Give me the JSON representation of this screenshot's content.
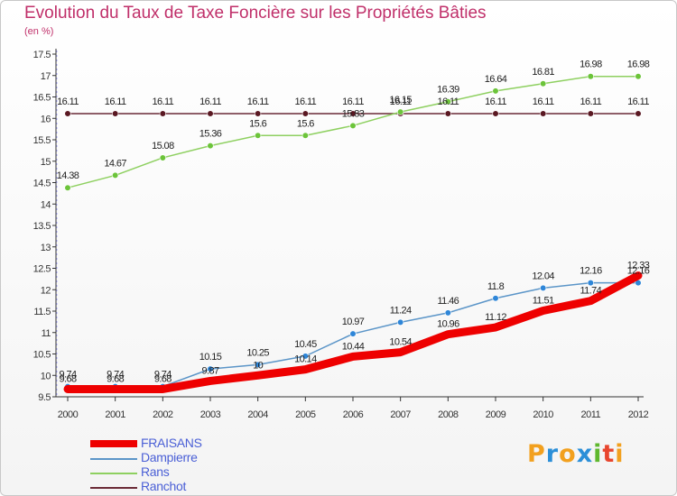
{
  "header": {
    "title": "Evolution du Taux de Taxe Foncière sur les Propriétés Bâties",
    "unit": "(en %)"
  },
  "brand": {
    "letters": [
      "P",
      "r",
      "o",
      "x",
      "i",
      "t",
      "i"
    ],
    "colors": [
      "#f2a01e",
      "#2b8fd8",
      "#f2a01e",
      "#2b8fd8",
      "#5fb82e",
      "#e8462e",
      "#f2a01e"
    ]
  },
  "chart_data": {
    "type": "line",
    "title": "Evolution du Taux de Taxe Foncière sur les Propriétés Bâties",
    "ylabel": "(en %)",
    "xlabel": "",
    "categories": [
      "2000",
      "2001",
      "2002",
      "2003",
      "2004",
      "2005",
      "2006",
      "2007",
      "2008",
      "2009",
      "2010",
      "2011",
      "2012"
    ],
    "ylim": [
      9.5,
      17.5
    ],
    "yticks": [
      "9.5",
      "10",
      "10.5",
      "11",
      "11.5",
      "12",
      "12.5",
      "13",
      "13.5",
      "14",
      "14.5",
      "15",
      "15.5",
      "16",
      "16.5",
      "17",
      "17.5"
    ],
    "grid": false,
    "legend_position": "bottom-left",
    "series": [
      {
        "name": "FRAISANS",
        "color": "#ee0000",
        "marker_color": "#ee0000",
        "values": [
          9.68,
          9.68,
          9.68,
          9.87,
          10.0,
          10.14,
          10.44,
          10.54,
          10.96,
          11.12,
          11.51,
          11.74,
          12.33
        ],
        "labels": [
          "9.68",
          "9.68",
          "9.68",
          "9.87",
          "10",
          "10.14",
          "10.44",
          "10.54",
          "10.96",
          "11.12",
          "11.51",
          "11.74",
          "12.33"
        ]
      },
      {
        "name": "Dampierre",
        "color": "#5b95c8",
        "marker_color": "#2e86d8",
        "values": [
          9.74,
          9.74,
          9.74,
          10.15,
          10.25,
          10.45,
          10.97,
          11.24,
          11.46,
          11.8,
          12.04,
          12.16,
          12.16
        ],
        "labels": [
          "9.74",
          "9.74",
          "9.74",
          "10.15",
          "10.25",
          "10.45",
          "10.97",
          "11.24",
          "11.46",
          "11.8",
          "12.04",
          "12.16",
          "12.16"
        ]
      },
      {
        "name": "Rans",
        "color": "#8ed060",
        "marker_color": "#6cc43a",
        "values": [
          14.38,
          14.67,
          15.08,
          15.36,
          15.6,
          15.6,
          15.83,
          16.15,
          16.39,
          16.64,
          16.81,
          16.98,
          16.98
        ],
        "labels": [
          "14.38",
          "14.67",
          "15.08",
          "15.36",
          "15.6",
          "15.6",
          "15.83",
          "16.15",
          "16.39",
          "16.64",
          "16.81",
          "16.98",
          "16.98"
        ]
      },
      {
        "name": "Ranchot",
        "color": "#6a2a36",
        "marker_color": "#5a1822",
        "values": [
          16.11,
          16.11,
          16.11,
          16.11,
          16.11,
          16.11,
          16.11,
          16.11,
          16.11,
          16.11,
          16.11,
          16.11,
          16.11
        ],
        "labels": [
          "16.11",
          "16.11",
          "16.11",
          "16.11",
          "16.11",
          "16.11",
          "16.11",
          "16.11",
          "16.11",
          "16.11",
          "16.11",
          "16.11",
          "16.11"
        ]
      }
    ]
  }
}
